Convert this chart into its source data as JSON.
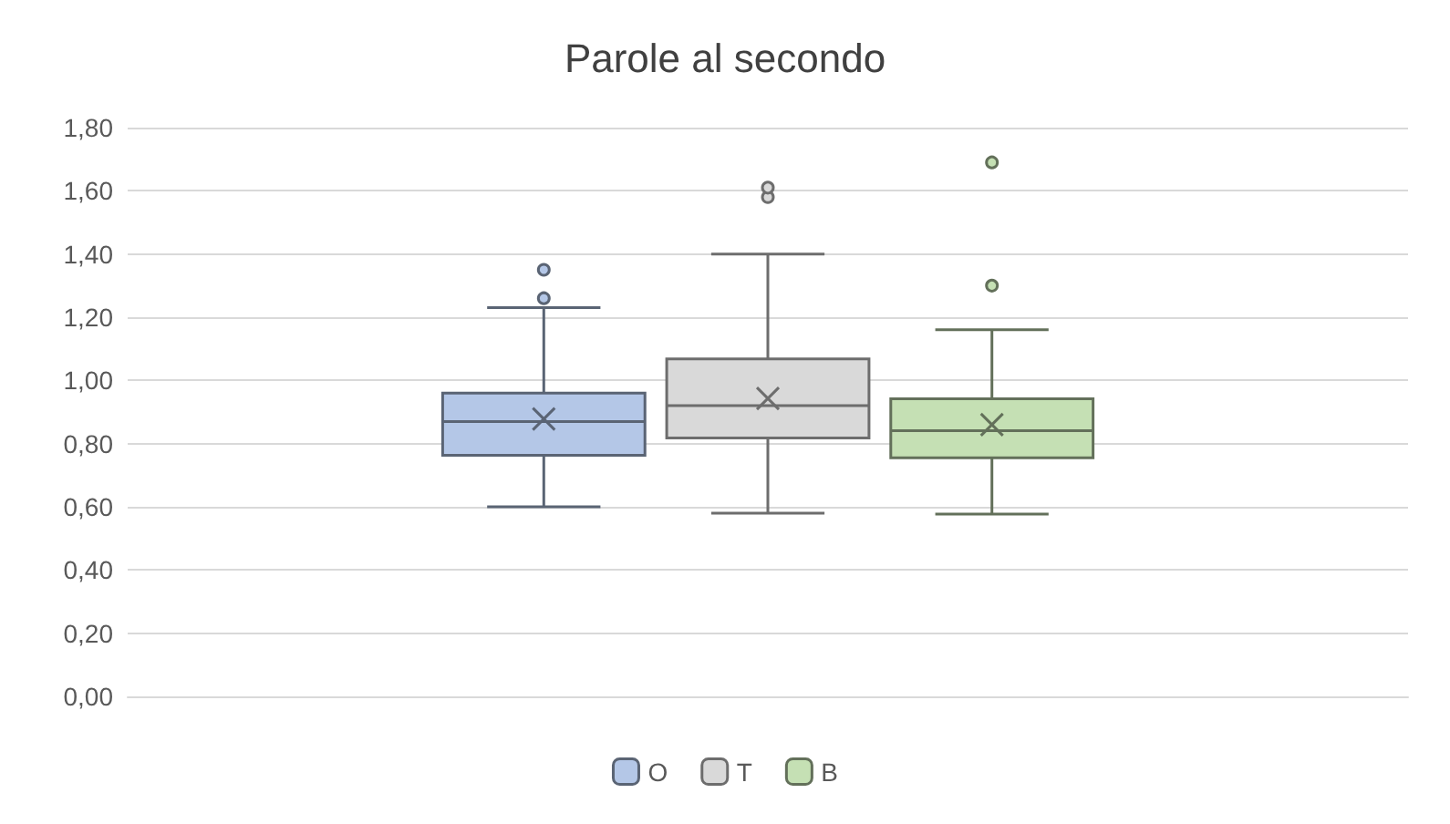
{
  "chart_data": {
    "type": "box",
    "title": "Parole al secondo",
    "categories": [
      null
    ],
    "series": [
      {
        "name": "O",
        "color": "#b4c7e7",
        "boxes": [
          {
            "low": 0.6,
            "q1": 0.763,
            "median": 0.87,
            "q3": 0.96,
            "high": 1.23,
            "mean": 0.878,
            "outliers": [
              1.26,
              1.35
            ]
          }
        ]
      },
      {
        "name": "T",
        "color": "#d9d9d9",
        "boxes": [
          {
            "low": 0.58,
            "q1": 0.818,
            "median": 0.92,
            "q3": 1.068,
            "high": 1.4,
            "mean": 0.943,
            "outliers": [
              1.58,
              1.61
            ]
          }
        ]
      },
      {
        "name": "B",
        "color": "#c5e0b4",
        "boxes": [
          {
            "low": 0.577,
            "q1": 0.755,
            "median": 0.841,
            "q3": 0.942,
            "high": 1.16,
            "mean": 0.86,
            "outliers": [
              1.3,
              1.69
            ]
          }
        ]
      }
    ],
    "ylim": [
      0,
      1.8
    ],
    "yticks": [
      {
        "value": 0,
        "label": "0,00"
      },
      {
        "value": 0.2,
        "label": "0,20"
      },
      {
        "value": 0.4,
        "label": "0,40"
      },
      {
        "value": 0.6,
        "label": "0,60"
      },
      {
        "value": 0.8,
        "label": "0,80"
      },
      {
        "value": 1.0,
        "label": "1,00"
      },
      {
        "value": 1.2,
        "label": "1,20"
      },
      {
        "value": 1.4,
        "label": "1,40"
      },
      {
        "value": 1.6,
        "label": "1,60"
      },
      {
        "value": 1.8,
        "label": "1,80"
      }
    ],
    "grid": "y",
    "legend": "bottom",
    "tick_labels": "y"
  }
}
